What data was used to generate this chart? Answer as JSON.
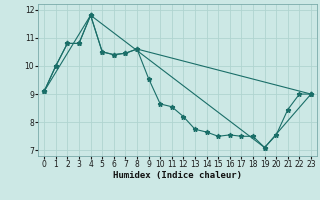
{
  "xlabel": "Humidex (Indice chaleur)",
  "background_color": "#cce8e5",
  "grid_color": "#b0d4d0",
  "line_color": "#1a6e68",
  "xlim": [
    -0.5,
    23.5
  ],
  "ylim": [
    6.8,
    12.2
  ],
  "yticks": [
    7,
    8,
    9,
    10,
    11,
    12
  ],
  "xticks": [
    0,
    1,
    2,
    3,
    4,
    5,
    6,
    7,
    8,
    9,
    10,
    11,
    12,
    13,
    14,
    15,
    16,
    17,
    18,
    19,
    20,
    21,
    22,
    23
  ],
  "series1_x": [
    0,
    1,
    2,
    3,
    4,
    5,
    6,
    7,
    8,
    9,
    10,
    11,
    12,
    13,
    14,
    15,
    16,
    17,
    18,
    19,
    20,
    21,
    22,
    23
  ],
  "series1_y": [
    9.1,
    10.0,
    10.8,
    10.8,
    11.8,
    10.5,
    10.4,
    10.45,
    10.6,
    9.55,
    8.65,
    8.55,
    8.2,
    7.75,
    7.65,
    7.5,
    7.55,
    7.5,
    7.5,
    7.1,
    7.55,
    8.45,
    9.0,
    9.0
  ],
  "series2_x": [
    0,
    1,
    2,
    3,
    4,
    5,
    6,
    7,
    8,
    23
  ],
  "series2_y": [
    9.1,
    10.0,
    10.8,
    10.8,
    11.8,
    10.5,
    10.4,
    10.45,
    10.6,
    9.0
  ],
  "series3_x": [
    0,
    4,
    19,
    23
  ],
  "series3_y": [
    9.1,
    11.8,
    7.1,
    9.0
  ]
}
